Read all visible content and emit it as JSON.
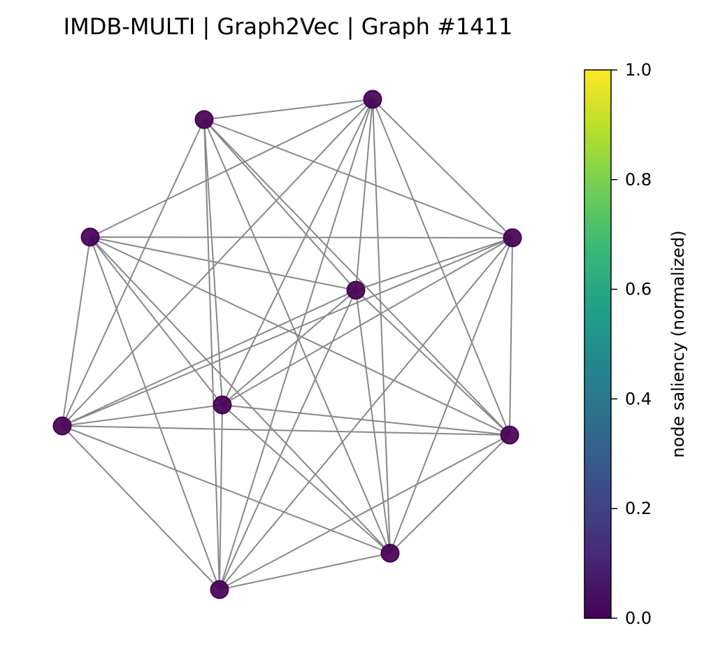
{
  "title": "IMDB-MULTI | Graph2Vec | Graph #1411",
  "graph": {
    "node_color": "#440154",
    "edge_color": "#888888",
    "nodes": [
      {
        "id": "n0",
        "saliency": 0.0
      },
      {
        "id": "n1",
        "saliency": 0.0
      },
      {
        "id": "n2",
        "saliency": 0.0
      },
      {
        "id": "n3",
        "saliency": 0.0
      },
      {
        "id": "n4",
        "saliency": 0.0
      },
      {
        "id": "n5",
        "saliency": 0.0
      },
      {
        "id": "n6",
        "saliency": 0.0
      },
      {
        "id": "n7",
        "saliency": 0.0
      },
      {
        "id": "n8",
        "saliency": 0.0
      },
      {
        "id": "n9",
        "saliency": 0.0
      }
    ],
    "edges": [
      [
        "n0",
        "n1"
      ],
      [
        "n0",
        "n3"
      ],
      [
        "n0",
        "n4"
      ],
      [
        "n0",
        "n6"
      ],
      [
        "n0",
        "n7"
      ],
      [
        "n0",
        "n8"
      ],
      [
        "n0",
        "n9"
      ],
      [
        "n0",
        "n5"
      ],
      [
        "n1",
        "n2"
      ],
      [
        "n1",
        "n3"
      ],
      [
        "n1",
        "n4"
      ],
      [
        "n1",
        "n5"
      ],
      [
        "n1",
        "n6"
      ],
      [
        "n1",
        "n7"
      ],
      [
        "n1",
        "n8"
      ],
      [
        "n1",
        "n9"
      ],
      [
        "n2",
        "n3"
      ],
      [
        "n2",
        "n4"
      ],
      [
        "n2",
        "n5"
      ],
      [
        "n2",
        "n6"
      ],
      [
        "n2",
        "n7"
      ],
      [
        "n2",
        "n8"
      ],
      [
        "n2",
        "n9"
      ],
      [
        "n3",
        "n4"
      ],
      [
        "n3",
        "n5"
      ],
      [
        "n3",
        "n6"
      ],
      [
        "n3",
        "n7"
      ],
      [
        "n3",
        "n8"
      ],
      [
        "n3",
        "n9"
      ],
      [
        "n4",
        "n5"
      ],
      [
        "n4",
        "n6"
      ],
      [
        "n4",
        "n7"
      ],
      [
        "n4",
        "n8"
      ],
      [
        "n4",
        "n9"
      ],
      [
        "n5",
        "n6"
      ],
      [
        "n5",
        "n7"
      ],
      [
        "n5",
        "n8"
      ],
      [
        "n5",
        "n9"
      ],
      [
        "n6",
        "n7"
      ],
      [
        "n6",
        "n8"
      ],
      [
        "n6",
        "n9"
      ],
      [
        "n7",
        "n8"
      ],
      [
        "n7",
        "n9"
      ],
      [
        "n8",
        "n9"
      ]
    ]
  },
  "colorbar": {
    "label": "node saliency (normalized)",
    "colormap": "viridis",
    "range": [
      0.0,
      1.0
    ],
    "ticks": [
      "0.0",
      "0.2",
      "0.4",
      "0.6",
      "0.8",
      "1.0"
    ],
    "stops": [
      "#440154",
      "#482878",
      "#3e4989",
      "#31688e",
      "#26828e",
      "#1f9e89",
      "#35b779",
      "#6ece58",
      "#b5de2b",
      "#fde725"
    ]
  }
}
